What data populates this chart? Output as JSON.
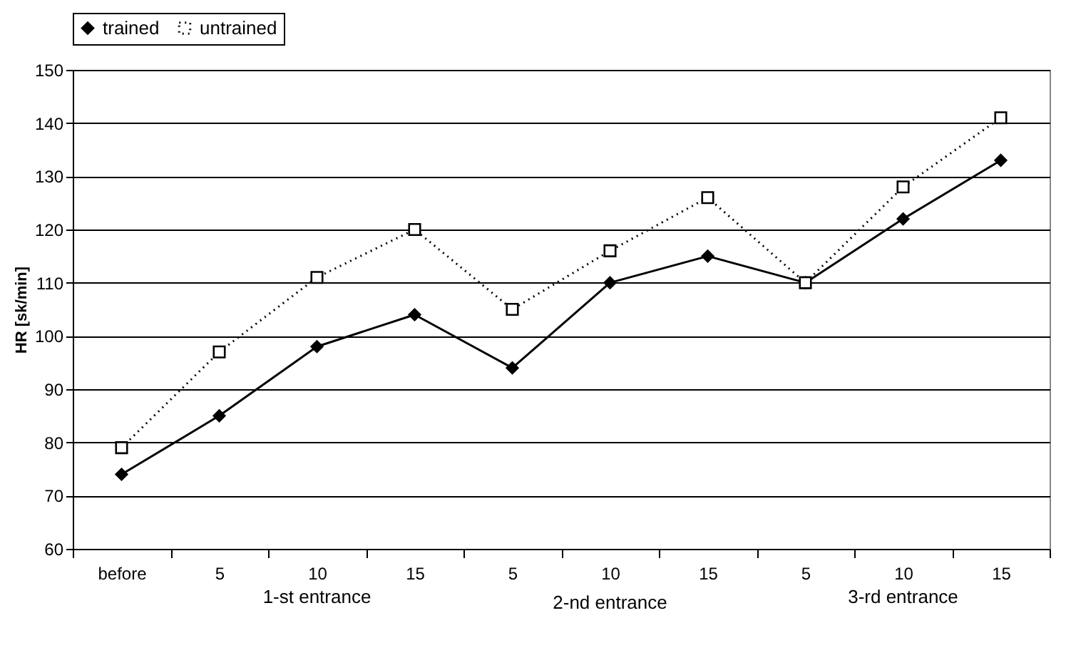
{
  "chart_data": {
    "type": "line",
    "ylabel": "HR [sk/min]",
    "categories": [
      "before",
      "5",
      "10",
      "15",
      "5",
      "10",
      "15",
      "5",
      "10",
      "15"
    ],
    "series": [
      {
        "name": "trained",
        "color": "#000000",
        "marker": "diamond",
        "line_style": "solid",
        "values": [
          74,
          85,
          98,
          104,
          94,
          110,
          115,
          110,
          122,
          133
        ]
      },
      {
        "name": "untrained",
        "color": "#000000",
        "marker": "square",
        "line_style": "dotted",
        "values": [
          79,
          97,
          111,
          120,
          105,
          116,
          126,
          110,
          128,
          141
        ]
      }
    ],
    "annotations": [
      "1-st entrance",
      "2-nd entrance",
      "3-rd entrance"
    ],
    "ylim": [
      60,
      150
    ],
    "yticks": [
      60,
      70,
      80,
      90,
      100,
      110,
      120,
      130,
      140,
      150
    ],
    "grid": "y",
    "legend": "top"
  }
}
